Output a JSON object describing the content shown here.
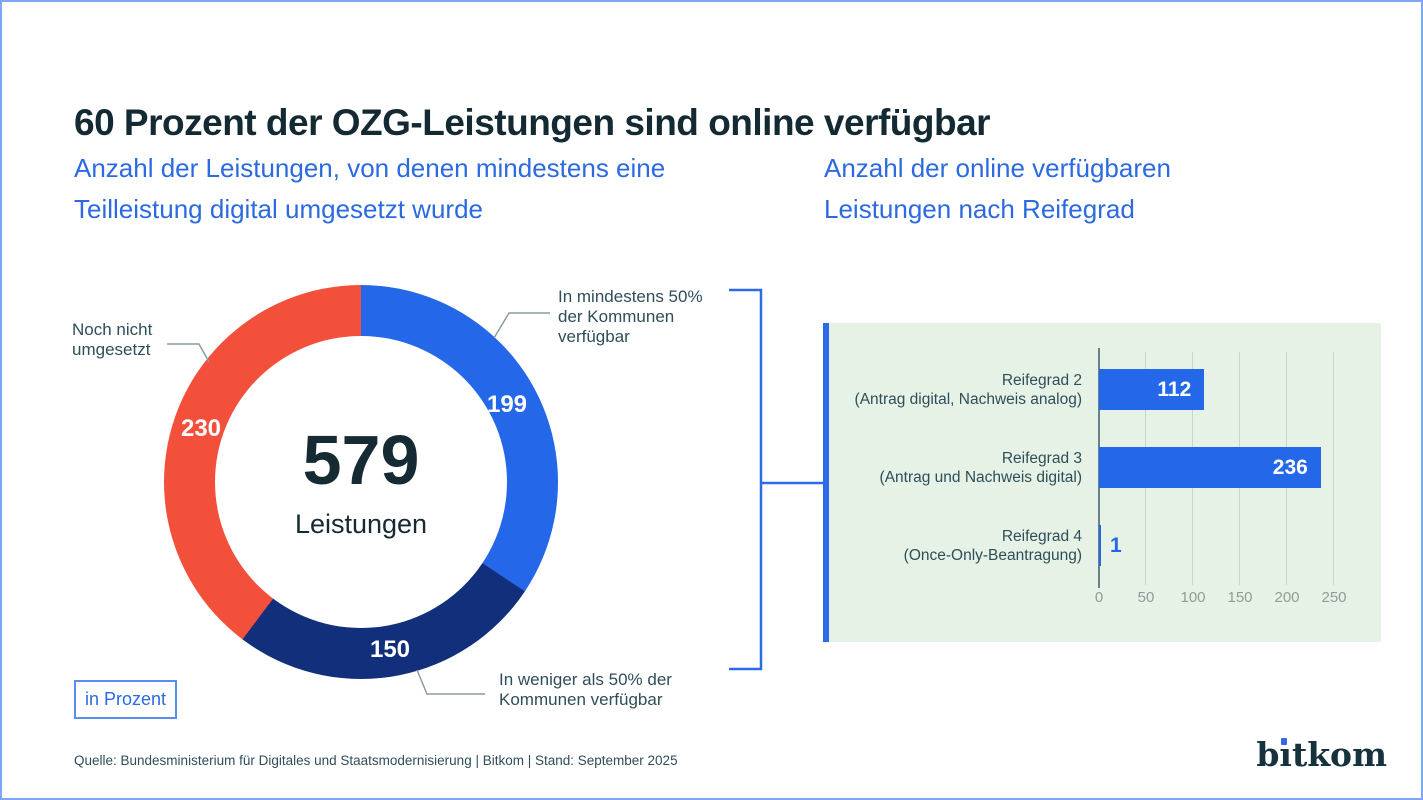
{
  "page": {
    "title": "60 Prozent der OZG-Leistungen sind online verfügbar",
    "subtitle_left": "Anzahl der Leistungen, von denen mindestens eine Teilleistung digital umgesetzt wurde",
    "subtitle_right": "Anzahl der online verfügbaren Leistungen nach Reifegrad",
    "unit_badge": "in Prozent",
    "source": "Quelle: Bundesministerium für Digitales und Staatsmodernisierung | Bitkom | Stand: September 2025",
    "brand": "bitkom"
  },
  "colors": {
    "accent_blue": "#2467e8",
    "navy": "#122f7b",
    "red": "#f3503b",
    "subtitle_blue": "#2b6ae0",
    "panel_green": "#e6f2e6",
    "text_dark": "#142a33",
    "label_gray": "#2e4e59",
    "line_gray": "#8c9ca0",
    "border_blue": "#7da7f3"
  },
  "chart_data": [
    {
      "type": "pie",
      "variant": "donut",
      "title": "Anzahl der Leistungen, von denen mindestens eine Teilleistung digital umgesetzt wurde",
      "center_value": "579",
      "center_label": "Leistungen",
      "total": 579,
      "start_angle_deg": 0,
      "direction": "clockwise",
      "slices": [
        {
          "label": "In mindestens 50% der Kommunen verfügbar",
          "value": 199,
          "color": "#2467e8"
        },
        {
          "label": "In weniger als 50% der Kommunen verfügbar",
          "value": 150,
          "color": "#122f7b"
        },
        {
          "label": "Noch nicht umgesetzt",
          "value": 230,
          "color": "#f3503b"
        }
      ]
    },
    {
      "type": "bar",
      "orientation": "horizontal",
      "title": "Anzahl der online verfügbaren Leistungen nach Reifegrad",
      "categories": [
        "Reifegrad 2",
        "Reifegrad 3",
        "Reifegrad 4"
      ],
      "category_sublabels": [
        "(Antrag digital, Nachweis analog)",
        "(Antrag und Nachweis digital)",
        "(Once-Only-Beantragung)"
      ],
      "values": [
        112,
        236,
        1
      ],
      "bar_color": "#2467e8",
      "xlim": [
        0,
        250
      ],
      "xticks": [
        0,
        50,
        100,
        150,
        200,
        250
      ],
      "grid": true,
      "legend": "none"
    }
  ]
}
